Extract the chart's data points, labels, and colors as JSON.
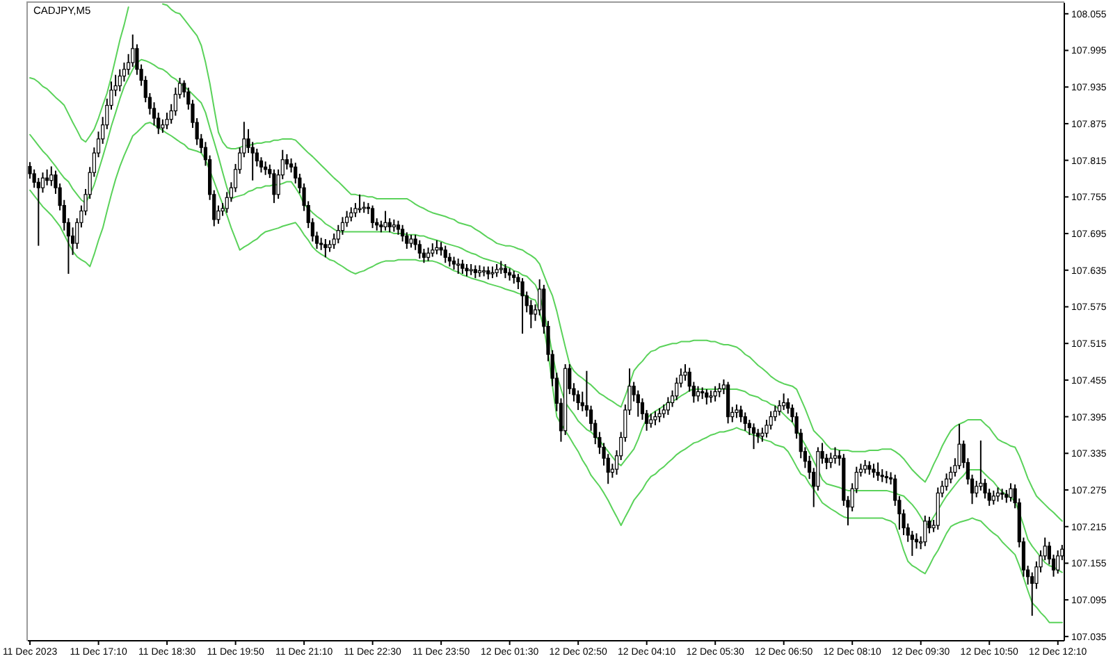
{
  "chart_data": {
    "type": "candlestick",
    "title": "CADJPY,M5",
    "categories": [
      "11 Dec 2023",
      null,
      null,
      null,
      null,
      null,
      null,
      null,
      null,
      null,
      null,
      null,
      null,
      null,
      null,
      null,
      "11 Dec 17:10",
      null,
      null,
      null,
      null,
      null,
      null,
      null,
      null,
      null,
      null,
      null,
      null,
      null,
      null,
      null,
      "11 Dec 18:30",
      null,
      null,
      null,
      null,
      null,
      null,
      null,
      null,
      null,
      null,
      null,
      null,
      null,
      null,
      null,
      "11 Dec 19:50",
      null,
      null,
      null,
      null,
      null,
      null,
      null,
      null,
      null,
      null,
      null,
      null,
      null,
      null,
      null,
      "11 Dec 21:10",
      null,
      null,
      null,
      null,
      null,
      null,
      null,
      null,
      null,
      null,
      null,
      null,
      null,
      null,
      null,
      "11 Dec 22:30",
      null,
      null,
      null,
      null,
      null,
      null,
      null,
      null,
      null,
      null,
      null,
      null,
      null,
      null,
      null,
      "11 Dec 23:50",
      null,
      null,
      null,
      null,
      null,
      null,
      null,
      null,
      null,
      null,
      null,
      null,
      null,
      null,
      null,
      "12 Dec 01:30",
      null,
      null,
      null,
      null,
      null,
      null,
      null,
      null,
      null,
      null,
      null,
      null,
      null,
      null,
      null,
      "12 Dec 02:50",
      null,
      null,
      null,
      null,
      null,
      null,
      null,
      null,
      null,
      null,
      null,
      null,
      null,
      null,
      null,
      "12 Dec 04:10",
      null,
      null,
      null,
      null,
      null,
      null,
      null,
      null,
      null,
      null,
      null,
      null,
      null,
      null,
      null,
      "12 Dec 05:30",
      null,
      null,
      null,
      null,
      null,
      null,
      null,
      null,
      null,
      null,
      null,
      null,
      null,
      null,
      null,
      "12 Dec 06:50",
      null,
      null,
      null,
      null,
      null,
      null,
      null,
      null,
      null,
      null,
      null,
      null,
      null,
      null,
      null,
      "12 Dec 08:10",
      null,
      null,
      null,
      null,
      null,
      null,
      null,
      null,
      null,
      null,
      null,
      null,
      null,
      null,
      null,
      "12 Dec 09:30",
      null,
      null,
      null,
      null,
      null,
      null,
      null,
      null,
      null,
      null,
      null,
      null,
      null,
      null,
      null,
      "12 Dec 10:50",
      null,
      null,
      null,
      null,
      null,
      null,
      null,
      null,
      null,
      null,
      null,
      null,
      null,
      null,
      null,
      "12 Dec 12:10",
      null
    ],
    "ohlc": [
      [
        107.805,
        107.812,
        107.785,
        107.793
      ],
      [
        107.793,
        107.8,
        107.77,
        107.779
      ],
      [
        107.779,
        107.786,
        107.675,
        107.77
      ],
      [
        107.77,
        107.795,
        107.762,
        107.786
      ],
      [
        107.786,
        107.8,
        107.774,
        107.782
      ],
      [
        107.782,
        107.805,
        107.773,
        107.791
      ],
      [
        107.791,
        107.798,
        107.76,
        107.77
      ],
      [
        107.77,
        107.777,
        107.733,
        107.741
      ],
      [
        107.741,
        107.75,
        107.7,
        107.713
      ],
      [
        107.713,
        107.72,
        107.629,
        107.691
      ],
      [
        107.691,
        107.705,
        107.66,
        107.679
      ],
      [
        107.679,
        107.72,
        107.67,
        107.713
      ],
      [
        107.713,
        107.741,
        107.705,
        107.732
      ],
      [
        107.732,
        107.768,
        107.725,
        107.759
      ],
      [
        107.759,
        107.804,
        107.752,
        107.795
      ],
      [
        107.795,
        107.836,
        107.788,
        107.827
      ],
      [
        107.827,
        107.862,
        107.82,
        107.85
      ],
      [
        107.85,
        107.886,
        107.842,
        107.873
      ],
      [
        107.873,
        107.916,
        107.866,
        107.905
      ],
      [
        107.905,
        107.944,
        107.898,
        107.93
      ],
      [
        107.93,
        107.955,
        107.92,
        107.937
      ],
      [
        107.937,
        107.964,
        107.928,
        107.953
      ],
      [
        107.953,
        107.975,
        107.944,
        107.964
      ],
      [
        107.964,
        107.989,
        107.955,
        107.975
      ],
      [
        107.975,
        108.021,
        107.968,
        107.998
      ],
      [
        107.998,
        108.005,
        107.955,
        107.964
      ],
      [
        107.964,
        107.972,
        107.937,
        107.946
      ],
      [
        107.946,
        107.953,
        107.91,
        107.918
      ],
      [
        107.918,
        107.925,
        107.89,
        107.9
      ],
      [
        107.9,
        107.91,
        107.872,
        107.884
      ],
      [
        107.884,
        107.893,
        107.858,
        107.868
      ],
      [
        107.868,
        107.882,
        107.86,
        107.873
      ],
      [
        107.873,
        107.893,
        107.866,
        107.882
      ],
      [
        107.882,
        107.907,
        107.875,
        107.896
      ],
      [
        107.896,
        107.934,
        107.888,
        107.923
      ],
      [
        107.923,
        107.95,
        107.916,
        107.941
      ],
      [
        107.941,
        107.946,
        107.918,
        107.927
      ],
      [
        107.927,
        107.934,
        107.898,
        107.907
      ],
      [
        107.907,
        107.914,
        107.868,
        107.877
      ],
      [
        107.877,
        107.884,
        107.84,
        107.85
      ],
      [
        107.85,
        107.858,
        107.827,
        107.836
      ],
      [
        107.836,
        107.845,
        107.806,
        107.816
      ],
      [
        107.816,
        107.823,
        107.75,
        107.759
      ],
      [
        107.759,
        107.766,
        107.707,
        107.718
      ],
      [
        107.718,
        107.741,
        107.711,
        107.732
      ],
      [
        107.732,
        107.745,
        107.724,
        107.736
      ],
      [
        107.736,
        107.763,
        107.729,
        107.754
      ],
      [
        107.754,
        107.779,
        107.747,
        107.77
      ],
      [
        107.77,
        107.809,
        107.763,
        107.8
      ],
      [
        107.8,
        107.836,
        107.793,
        107.827
      ],
      [
        107.827,
        107.878,
        107.82,
        107.85
      ],
      [
        107.85,
        107.866,
        107.827,
        107.836
      ],
      [
        107.836,
        107.845,
        107.782,
        107.827
      ],
      [
        107.827,
        107.834,
        107.805,
        107.814
      ],
      [
        107.814,
        107.82,
        107.795,
        107.804
      ],
      [
        107.804,
        107.813,
        107.791,
        107.8
      ],
      [
        107.8,
        107.808,
        107.786,
        107.793
      ],
      [
        107.793,
        107.8,
        107.745,
        107.759
      ],
      [
        107.759,
        107.8,
        107.752,
        107.791
      ],
      [
        107.791,
        107.832,
        107.784,
        107.816
      ],
      [
        107.816,
        107.825,
        107.8,
        107.809
      ],
      [
        107.809,
        107.818,
        107.795,
        107.804
      ],
      [
        107.804,
        107.811,
        107.777,
        107.786
      ],
      [
        107.786,
        107.793,
        107.761,
        107.77
      ],
      [
        107.77,
        107.777,
        107.732,
        107.741
      ],
      [
        107.741,
        107.748,
        107.704,
        107.713
      ],
      [
        107.713,
        107.72,
        107.682,
        107.691
      ],
      [
        107.691,
        107.698,
        107.67,
        107.679
      ],
      [
        107.679,
        107.688,
        107.668,
        107.677
      ],
      [
        107.677,
        107.686,
        107.656,
        107.672
      ],
      [
        107.672,
        107.684,
        107.665,
        107.677
      ],
      [
        107.677,
        107.695,
        107.67,
        107.686
      ],
      [
        107.686,
        107.709,
        107.679,
        107.7
      ],
      [
        107.7,
        107.722,
        107.693,
        107.713
      ],
      [
        107.713,
        107.732,
        107.706,
        107.722
      ],
      [
        107.722,
        107.738,
        107.715,
        107.729
      ],
      [
        107.729,
        107.745,
        107.722,
        107.736
      ],
      [
        107.736,
        107.759,
        107.729,
        107.736
      ],
      [
        107.736,
        107.747,
        107.729,
        107.738
      ],
      [
        107.738,
        107.745,
        107.727,
        107.736
      ],
      [
        107.736,
        107.741,
        107.704,
        107.713
      ],
      [
        107.713,
        107.72,
        107.7,
        107.709
      ],
      [
        107.709,
        107.716,
        107.697,
        107.706
      ],
      [
        107.706,
        107.732,
        107.7,
        107.713
      ],
      [
        107.713,
        107.72,
        107.697,
        107.706
      ],
      [
        107.706,
        107.718,
        107.698,
        107.709
      ],
      [
        107.709,
        107.716,
        107.693,
        107.702
      ],
      [
        107.702,
        107.709,
        107.682,
        107.691
      ],
      [
        107.691,
        107.697,
        107.67,
        107.679
      ],
      [
        107.679,
        107.693,
        107.672,
        107.686
      ],
      [
        107.686,
        107.693,
        107.668,
        107.677
      ],
      [
        107.677,
        107.684,
        107.654,
        107.663
      ],
      [
        107.663,
        107.67,
        107.647,
        107.656
      ],
      [
        107.656,
        107.672,
        107.65,
        107.663
      ],
      [
        107.663,
        107.679,
        107.657,
        107.668
      ],
      [
        107.668,
        107.684,
        107.661,
        107.672
      ],
      [
        107.672,
        107.681,
        107.659,
        107.668
      ],
      [
        107.668,
        107.675,
        107.647,
        107.656
      ],
      [
        107.656,
        107.663,
        107.641,
        107.65
      ],
      [
        107.65,
        107.657,
        107.636,
        107.645
      ],
      [
        107.645,
        107.654,
        107.629,
        107.645
      ],
      [
        107.645,
        107.652,
        107.629,
        107.638
      ],
      [
        107.638,
        107.645,
        107.625,
        107.634
      ],
      [
        107.634,
        107.645,
        107.627,
        107.636
      ],
      [
        107.636,
        107.643,
        107.622,
        107.631
      ],
      [
        107.631,
        107.643,
        107.624,
        107.634
      ],
      [
        107.634,
        107.641,
        107.625,
        107.634
      ],
      [
        107.634,
        107.641,
        107.62,
        107.629
      ],
      [
        107.629,
        107.641,
        107.622,
        107.631
      ],
      [
        107.631,
        107.645,
        107.624,
        107.636
      ],
      [
        107.636,
        107.65,
        107.629,
        107.638
      ],
      [
        107.638,
        107.645,
        107.622,
        107.631
      ],
      [
        107.631,
        107.638,
        107.618,
        107.627
      ],
      [
        107.627,
        107.634,
        107.613,
        107.623
      ],
      [
        107.623,
        107.629,
        107.604,
        107.616
      ],
      [
        107.616,
        107.622,
        107.531,
        107.593
      ],
      [
        107.593,
        107.6,
        107.566,
        107.577
      ],
      [
        107.577,
        107.586,
        107.54,
        107.563
      ],
      [
        107.563,
        107.579,
        107.552,
        107.57
      ],
      [
        107.57,
        107.62,
        107.561,
        107.604
      ],
      [
        107.604,
        107.611,
        107.531,
        107.543
      ],
      [
        107.543,
        107.552,
        107.486,
        107.497
      ],
      [
        107.497,
        107.504,
        107.445,
        107.458
      ],
      [
        107.458,
        107.467,
        107.404,
        107.417
      ],
      [
        107.417,
        107.425,
        107.354,
        107.372
      ],
      [
        107.372,
        107.481,
        107.365,
        107.474
      ],
      [
        107.474,
        107.481,
        107.432,
        107.441
      ],
      [
        107.441,
        107.45,
        107.42,
        107.431
      ],
      [
        107.431,
        107.438,
        107.406,
        107.418
      ],
      [
        107.418,
        107.436,
        107.404,
        107.413
      ],
      [
        107.413,
        107.47,
        107.395,
        107.406
      ],
      [
        107.406,
        107.413,
        107.372,
        107.384
      ],
      [
        107.384,
        107.39,
        107.35,
        107.361
      ],
      [
        107.361,
        107.37,
        107.334,
        107.345
      ],
      [
        107.345,
        107.352,
        107.315,
        107.327
      ],
      [
        107.327,
        107.334,
        107.285,
        107.304
      ],
      [
        107.304,
        107.318,
        107.295,
        107.309
      ],
      [
        107.309,
        107.34,
        107.3,
        107.331
      ],
      [
        107.331,
        107.37,
        107.324,
        107.361
      ],
      [
        107.361,
        107.415,
        107.354,
        107.406
      ],
      [
        107.406,
        107.474,
        107.398,
        107.445
      ],
      [
        107.445,
        107.452,
        107.42,
        107.431
      ],
      [
        107.431,
        107.438,
        107.395,
        107.418
      ],
      [
        107.418,
        107.425,
        107.39,
        107.4
      ],
      [
        107.4,
        107.406,
        107.372,
        107.384
      ],
      [
        107.384,
        107.4,
        107.377,
        107.39
      ],
      [
        107.39,
        107.404,
        107.381,
        107.395
      ],
      [
        107.395,
        107.409,
        107.386,
        107.4
      ],
      [
        107.4,
        107.415,
        107.393,
        107.406
      ],
      [
        107.406,
        107.427,
        107.398,
        107.418
      ],
      [
        107.418,
        107.438,
        107.411,
        107.429
      ],
      [
        107.429,
        107.459,
        107.422,
        107.45
      ],
      [
        107.45,
        107.474,
        107.443,
        107.463
      ],
      [
        107.463,
        107.481,
        107.454,
        107.468
      ],
      [
        107.468,
        107.475,
        107.436,
        107.445
      ],
      [
        107.445,
        107.452,
        107.418,
        107.429
      ],
      [
        107.429,
        107.445,
        107.42,
        107.436
      ],
      [
        107.436,
        107.443,
        107.424,
        107.434
      ],
      [
        107.434,
        107.44,
        107.415,
        107.427
      ],
      [
        107.427,
        107.438,
        107.418,
        107.429
      ],
      [
        107.429,
        107.445,
        107.42,
        107.436
      ],
      [
        107.436,
        107.45,
        107.427,
        107.441
      ],
      [
        107.441,
        107.456,
        107.432,
        107.447
      ],
      [
        107.447,
        107.452,
        107.384,
        107.395
      ],
      [
        107.395,
        107.411,
        107.386,
        107.402
      ],
      [
        107.402,
        107.415,
        107.393,
        107.406
      ],
      [
        107.406,
        107.413,
        107.386,
        107.395
      ],
      [
        107.395,
        107.402,
        107.372,
        107.384
      ],
      [
        107.384,
        107.39,
        107.365,
        107.377
      ],
      [
        107.377,
        107.384,
        107.342,
        107.368
      ],
      [
        107.368,
        107.375,
        107.352,
        107.363
      ],
      [
        107.363,
        107.377,
        107.354,
        107.368
      ],
      [
        107.368,
        107.39,
        107.361,
        107.381
      ],
      [
        107.381,
        107.404,
        107.374,
        107.395
      ],
      [
        107.395,
        107.413,
        107.388,
        107.404
      ],
      [
        107.404,
        107.422,
        107.397,
        107.413
      ],
      [
        107.413,
        107.433,
        107.406,
        107.418
      ],
      [
        107.418,
        107.425,
        107.4,
        107.409
      ],
      [
        107.409,
        107.415,
        107.386,
        107.395
      ],
      [
        107.395,
        107.402,
        107.359,
        107.368
      ],
      [
        107.368,
        107.375,
        107.327,
        107.338
      ],
      [
        107.338,
        107.345,
        107.311,
        107.322
      ],
      [
        107.322,
        107.331,
        107.293,
        107.304
      ],
      [
        107.304,
        107.311,
        107.247,
        107.281
      ],
      [
        107.281,
        107.345,
        107.274,
        107.338
      ],
      [
        107.338,
        107.352,
        107.318,
        107.327
      ],
      [
        107.327,
        107.334,
        107.309,
        107.32
      ],
      [
        107.32,
        107.336,
        107.311,
        107.327
      ],
      [
        107.327,
        107.345,
        107.318,
        107.331
      ],
      [
        107.331,
        107.34,
        107.315,
        107.327
      ],
      [
        107.327,
        107.334,
        107.249,
        107.258
      ],
      [
        107.258,
        107.265,
        107.217,
        107.247
      ],
      [
        107.247,
        107.286,
        107.24,
        107.277
      ],
      [
        107.277,
        107.313,
        107.27,
        107.304
      ],
      [
        107.304,
        107.318,
        107.297,
        107.309
      ],
      [
        107.309,
        107.324,
        107.302,
        107.315
      ],
      [
        107.315,
        107.322,
        107.3,
        107.309
      ],
      [
        107.309,
        107.318,
        107.295,
        107.304
      ],
      [
        107.304,
        107.32,
        107.29,
        107.299
      ],
      [
        107.299,
        107.309,
        107.288,
        107.297
      ],
      [
        107.297,
        107.306,
        107.286,
        107.295
      ],
      [
        107.295,
        107.304,
        107.284,
        107.293
      ],
      [
        107.293,
        107.3,
        107.249,
        107.258
      ],
      [
        107.258,
        107.265,
        107.21,
        107.236
      ],
      [
        107.236,
        107.243,
        107.201,
        107.213
      ],
      [
        107.213,
        107.22,
        107.19,
        107.201
      ],
      [
        107.201,
        107.208,
        107.167,
        107.194
      ],
      [
        107.194,
        107.204,
        107.179,
        107.19
      ],
      [
        107.19,
        107.199,
        107.178,
        107.19
      ],
      [
        107.19,
        107.233,
        107.183,
        107.224
      ],
      [
        107.224,
        107.231,
        107.204,
        107.213
      ],
      [
        107.213,
        107.226,
        107.206,
        107.217
      ],
      [
        107.217,
        107.279,
        107.21,
        107.27
      ],
      [
        107.27,
        107.29,
        107.263,
        107.281
      ],
      [
        107.281,
        107.302,
        107.274,
        107.293
      ],
      [
        107.293,
        107.313,
        107.286,
        107.304
      ],
      [
        107.304,
        107.327,
        107.297,
        107.315
      ],
      [
        107.315,
        107.383,
        107.309,
        107.35
      ],
      [
        107.35,
        107.356,
        107.311,
        107.32
      ],
      [
        107.32,
        107.327,
        107.284,
        107.293
      ],
      [
        107.293,
        107.3,
        107.252,
        107.27
      ],
      [
        107.27,
        107.29,
        107.263,
        107.281
      ],
      [
        107.281,
        107.356,
        107.274,
        107.286
      ],
      [
        107.286,
        107.293,
        107.261,
        107.27
      ],
      [
        107.27,
        107.277,
        107.249,
        107.258
      ],
      [
        107.258,
        107.274,
        107.251,
        107.265
      ],
      [
        107.265,
        107.279,
        107.256,
        107.27
      ],
      [
        107.27,
        107.277,
        107.259,
        107.268
      ],
      [
        107.268,
        107.275,
        107.254,
        107.263
      ],
      [
        107.263,
        107.286,
        107.256,
        107.277
      ],
      [
        107.277,
        107.284,
        107.245,
        107.254
      ],
      [
        107.254,
        107.261,
        107.181,
        107.19
      ],
      [
        107.19,
        107.197,
        107.133,
        107.144
      ],
      [
        107.144,
        107.151,
        107.12,
        107.133
      ],
      [
        107.133,
        107.14,
        107.069,
        107.122
      ],
      [
        107.122,
        107.158,
        107.113,
        107.149
      ],
      [
        107.149,
        107.176,
        107.14,
        107.167
      ],
      [
        107.167,
        107.197,
        107.16,
        107.183
      ],
      [
        107.183,
        107.19,
        107.153,
        107.162
      ],
      [
        107.162,
        107.169,
        107.133,
        107.144
      ],
      [
        107.144,
        107.176,
        107.138,
        107.167
      ],
      [
        107.167,
        107.185,
        107.16,
        107.178
      ]
    ],
    "series": [
      {
        "type": "line",
        "color": "#5ad25a",
        "values": [
          107.95,
          107.948,
          107.943,
          107.936,
          107.932,
          107.925,
          107.918,
          107.912,
          107.905,
          107.891,
          107.877,
          107.864,
          107.85,
          107.845,
          107.855,
          107.866,
          107.884,
          107.905,
          107.925,
          107.952,
          107.982,
          108.012,
          108.037,
          108.066,
          null,
          null,
          null,
          null,
          null,
          null,
          null,
          108.071,
          108.069,
          108.062,
          108.057,
          108.055,
          108.046,
          108.037,
          108.028,
          108.019,
          108.003,
          107.975,
          107.941,
          107.9,
          107.861,
          107.845,
          107.836,
          107.834,
          107.834,
          107.836,
          107.839,
          107.839,
          107.841,
          107.843,
          107.843,
          107.845,
          107.845,
          107.848,
          107.848,
          107.85,
          107.85,
          107.85,
          107.848,
          107.841,
          107.834,
          107.827,
          107.821,
          107.814,
          107.807,
          107.8,
          107.793,
          107.786,
          107.78,
          107.773,
          107.766,
          107.759,
          107.759,
          107.757,
          107.757,
          107.755,
          107.755,
          107.752,
          107.752,
          107.752,
          107.752,
          107.752,
          107.752,
          107.752,
          107.752,
          107.748,
          107.743,
          107.739,
          107.736,
          107.732,
          107.729,
          107.727,
          107.725,
          107.723,
          107.72,
          107.718,
          107.713,
          107.711,
          107.709,
          107.707,
          107.702,
          107.698,
          107.693,
          107.688,
          107.684,
          107.679,
          107.677,
          107.675,
          107.675,
          107.673,
          107.67,
          107.668,
          107.663,
          107.659,
          107.654,
          107.645,
          107.627,
          107.609,
          107.593,
          107.568,
          107.538,
          107.509,
          107.481,
          107.47,
          107.463,
          107.458,
          107.452,
          107.447,
          107.44,
          107.433,
          107.429,
          107.424,
          107.42,
          107.415,
          107.411,
          107.429,
          107.449,
          107.47,
          107.479,
          107.486,
          107.495,
          107.502,
          107.504,
          107.509,
          107.511,
          107.513,
          107.515,
          107.515,
          107.518,
          107.518,
          107.518,
          107.52,
          107.52,
          107.52,
          107.52,
          107.518,
          107.518,
          107.515,
          107.513,
          107.513,
          107.511,
          107.509,
          107.504,
          107.497,
          107.493,
          107.486,
          107.479,
          107.474,
          107.468,
          107.461,
          107.456,
          107.452,
          107.449,
          107.447,
          107.445,
          107.44,
          107.424,
          107.408,
          107.39,
          107.372,
          107.365,
          107.358,
          107.349,
          107.342,
          107.342,
          107.34,
          107.34,
          107.34,
          107.338,
          107.338,
          107.338,
          107.338,
          107.34,
          107.34,
          107.34,
          107.342,
          107.342,
          107.342,
          107.338,
          107.333,
          107.326,
          107.317,
          107.308,
          107.301,
          107.294,
          107.288,
          107.301,
          107.317,
          107.331,
          107.347,
          107.36,
          107.372,
          107.379,
          107.383,
          107.386,
          107.39,
          107.39,
          107.39,
          107.39,
          107.383,
          107.377,
          107.367,
          107.358,
          107.354,
          107.351,
          107.347,
          107.345,
          107.331,
          107.313,
          107.294,
          107.279,
          107.265,
          107.258,
          107.251,
          107.244,
          107.238,
          107.231,
          107.224
        ]
      },
      {
        "type": "line",
        "color": "#5ad25a",
        "values": [
          107.857,
          107.848,
          107.839,
          107.83,
          107.823,
          107.814,
          107.805,
          107.795,
          107.786,
          107.78,
          107.768,
          107.759,
          107.75,
          107.745,
          107.759,
          107.775,
          107.798,
          107.821,
          107.845,
          107.871,
          107.893,
          107.916,
          107.936,
          107.95,
          107.964,
          107.975,
          107.98,
          107.978,
          107.975,
          107.971,
          107.966,
          107.964,
          107.959,
          107.952,
          107.948,
          107.941,
          107.936,
          107.93,
          107.923,
          107.916,
          107.909,
          107.893,
          107.868,
          107.845,
          107.821,
          107.795,
          107.77,
          107.752,
          107.755,
          107.757,
          107.759,
          107.764,
          107.766,
          107.77,
          107.77,
          107.773,
          107.773,
          107.775,
          107.775,
          107.777,
          107.78,
          107.78,
          107.77,
          107.759,
          107.743,
          107.736,
          107.729,
          107.723,
          107.718,
          107.711,
          107.707,
          107.702,
          107.698,
          107.698,
          107.698,
          107.698,
          107.698,
          107.698,
          107.698,
          107.698,
          107.698,
          107.698,
          107.698,
          107.698,
          107.698,
          107.695,
          107.695,
          107.695,
          107.693,
          107.693,
          107.693,
          107.691,
          107.691,
          107.688,
          107.686,
          107.684,
          107.682,
          107.679,
          107.677,
          107.675,
          107.673,
          107.67,
          107.666,
          107.663,
          107.661,
          107.657,
          107.654,
          107.652,
          107.65,
          107.648,
          107.645,
          107.641,
          107.639,
          107.634,
          107.632,
          107.627,
          107.625,
          107.618,
          107.611,
          107.595,
          107.566,
          107.536,
          107.497,
          107.463,
          107.44,
          107.418,
          107.408,
          107.399,
          107.388,
          107.381,
          107.374,
          107.37,
          107.363,
          107.356,
          107.347,
          107.338,
          107.329,
          107.32,
          107.315,
          107.324,
          107.333,
          107.342,
          107.358,
          107.377,
          107.392,
          107.399,
          107.404,
          107.408,
          107.413,
          107.418,
          107.42,
          107.424,
          107.429,
          107.433,
          107.438,
          107.44,
          107.44,
          107.44,
          107.44,
          107.44,
          107.44,
          107.44,
          107.44,
          107.44,
          107.44,
          107.44,
          107.438,
          107.436,
          107.431,
          107.429,
          107.427,
          107.422,
          107.42,
          107.415,
          107.413,
          107.406,
          107.399,
          107.392,
          107.386,
          107.374,
          107.361,
          107.349,
          107.336,
          107.322,
          107.308,
          107.292,
          107.285,
          107.283,
          107.281,
          107.279,
          107.276,
          107.274,
          107.274,
          107.274,
          107.274,
          107.274,
          107.274,
          107.274,
          107.274,
          107.274,
          107.274,
          107.272,
          107.27,
          107.267,
          107.265,
          107.258,
          107.251,
          107.242,
          107.231,
          107.219,
          107.219,
          107.231,
          107.242,
          107.254,
          107.265,
          107.274,
          107.283,
          107.292,
          107.299,
          107.308,
          107.308,
          107.308,
          107.308,
          107.301,
          107.294,
          107.288,
          107.279,
          107.272,
          107.267,
          107.263,
          107.256,
          107.238,
          107.217,
          107.194,
          107.183,
          107.174,
          107.165,
          107.156,
          107.151,
          107.149,
          107.144,
          107.14
        ]
      },
      {
        "type": "line",
        "color": "#5ad25a",
        "values": [
          107.766,
          107.757,
          107.748,
          107.739,
          107.732,
          107.725,
          107.716,
          107.707,
          107.693,
          107.679,
          107.666,
          107.657,
          107.652,
          107.648,
          107.641,
          107.661,
          107.684,
          107.704,
          107.732,
          107.759,
          107.784,
          107.805,
          107.823,
          107.839,
          107.855,
          107.861,
          107.868,
          107.875,
          107.877,
          107.873,
          107.868,
          107.864,
          107.859,
          107.855,
          107.85,
          107.845,
          107.841,
          107.834,
          107.832,
          107.83,
          107.827,
          107.816,
          107.798,
          107.78,
          107.761,
          107.743,
          107.725,
          107.704,
          107.686,
          107.668,
          107.673,
          107.677,
          107.682,
          107.686,
          107.693,
          107.698,
          107.7,
          107.702,
          107.704,
          107.707,
          107.709,
          107.711,
          107.713,
          107.704,
          107.693,
          107.684,
          107.673,
          107.666,
          107.661,
          107.657,
          107.652,
          107.65,
          107.645,
          107.641,
          107.636,
          107.632,
          107.629,
          107.632,
          107.634,
          107.638,
          107.641,
          107.645,
          107.648,
          107.65,
          107.65,
          107.65,
          107.652,
          107.652,
          107.652,
          107.652,
          107.652,
          107.65,
          107.65,
          107.65,
          107.65,
          107.648,
          107.645,
          107.641,
          107.638,
          107.634,
          107.632,
          107.627,
          107.625,
          107.622,
          107.62,
          107.618,
          107.616,
          107.613,
          107.611,
          107.609,
          107.607,
          107.604,
          107.602,
          107.6,
          107.597,
          107.595,
          107.593,
          107.588,
          107.586,
          107.566,
          107.54,
          107.499,
          107.445,
          107.395,
          107.383,
          107.372,
          107.361,
          107.349,
          107.338,
          107.324,
          107.313,
          107.299,
          107.29,
          107.281,
          107.27,
          107.258,
          107.244,
          107.231,
          107.217,
          107.231,
          107.244,
          107.258,
          107.267,
          107.276,
          107.288,
          107.297,
          107.301,
          107.308,
          107.313,
          107.32,
          107.326,
          107.333,
          107.338,
          107.342,
          107.347,
          107.352,
          107.354,
          107.358,
          107.361,
          107.365,
          107.367,
          107.37,
          107.37,
          107.372,
          107.374,
          107.377,
          107.374,
          107.372,
          107.367,
          107.365,
          107.363,
          107.358,
          107.356,
          107.354,
          107.349,
          107.347,
          107.345,
          107.338,
          107.326,
          107.313,
          107.301,
          107.297,
          107.285,
          107.276,
          107.265,
          107.254,
          107.249,
          107.244,
          107.24,
          107.235,
          107.231,
          107.229,
          107.229,
          107.229,
          107.229,
          107.229,
          107.229,
          107.229,
          107.229,
          107.229,
          107.226,
          107.224,
          107.219,
          107.199,
          107.176,
          107.158,
          107.151,
          107.147,
          107.142,
          107.138,
          107.151,
          107.165,
          107.176,
          107.19,
          107.204,
          107.215,
          107.219,
          107.222,
          107.224,
          107.226,
          107.229,
          107.226,
          107.224,
          107.217,
          107.21,
          107.204,
          107.199,
          107.19,
          107.183,
          107.176,
          107.169,
          107.151,
          107.131,
          107.11,
          107.09,
          107.083,
          107.074,
          107.067,
          107.058,
          107.058,
          107.058,
          107.058
        ]
      }
    ],
    "ylim": [
      107.028,
      108.073
    ],
    "yticks": [
      107.035,
      107.095,
      107.155,
      107.215,
      107.275,
      107.335,
      107.395,
      107.455,
      107.515,
      107.575,
      107.635,
      107.695,
      107.755,
      107.815,
      107.875,
      107.935,
      107.995,
      108.055
    ]
  }
}
